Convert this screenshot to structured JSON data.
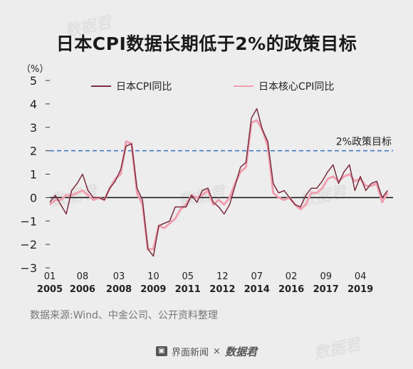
{
  "title": "日本CPI数据长期低于2%的政策目标",
  "source": "数据来源:Wind、中金公司、公开资料整理",
  "footer": {
    "brand1": "界面新闻",
    "times": "×",
    "brand2": "数据君"
  },
  "colors": {
    "cpi": "#7b2d3e",
    "core": "#f0a0b0",
    "target": "#3b6fc2",
    "zero": "#111111"
  },
  "chart_data": {
    "type": "line",
    "ylabel": "（%）",
    "ylim": [
      -3,
      5
    ],
    "yticks": [
      "5",
      "4",
      "3",
      "2",
      "1",
      "0",
      "−1",
      "−2",
      "−3"
    ],
    "xlim": [
      2005.0,
      2020.75
    ],
    "xticks": [
      {
        "x": 2005.0,
        "month": "01",
        "year": "2005"
      },
      {
        "x": 2006.5,
        "month": "08",
        "year": "2006"
      },
      {
        "x": 2008.17,
        "month": "03",
        "year": "2008"
      },
      {
        "x": 2009.75,
        "month": "10",
        "year": "2009"
      },
      {
        "x": 2011.33,
        "month": "05",
        "year": "2011"
      },
      {
        "x": 2012.92,
        "month": "12",
        "year": "2012"
      },
      {
        "x": 2014.5,
        "month": "07",
        "year": "2014"
      },
      {
        "x": 2016.08,
        "month": "02",
        "year": "2016"
      },
      {
        "x": 2017.67,
        "month": "09",
        "year": "2017"
      },
      {
        "x": 2019.25,
        "month": "04",
        "year": "2019"
      }
    ],
    "reference_line": {
      "value": 2,
      "label": "2%政策目标"
    },
    "series": [
      {
        "name": "日本CPI同比",
        "x": [
          2005.0,
          2005.25,
          2005.5,
          2005.75,
          2006.0,
          2006.25,
          2006.5,
          2006.75,
          2007.0,
          2007.25,
          2007.5,
          2007.75,
          2008.0,
          2008.25,
          2008.5,
          2008.75,
          2009.0,
          2009.25,
          2009.5,
          2009.75,
          2010.0,
          2010.25,
          2010.5,
          2010.75,
          2011.0,
          2011.25,
          2011.5,
          2011.75,
          2012.0,
          2012.25,
          2012.5,
          2012.75,
          2013.0,
          2013.25,
          2013.5,
          2013.75,
          2014.0,
          2014.25,
          2014.5,
          2014.75,
          2015.0,
          2015.25,
          2015.5,
          2015.75,
          2016.0,
          2016.25,
          2016.5,
          2016.75,
          2017.0,
          2017.25,
          2017.5,
          2017.75,
          2018.0,
          2018.25,
          2018.5,
          2018.75,
          2019.0,
          2019.25,
          2019.5,
          2019.75,
          2020.0,
          2020.25,
          2020.5
        ],
        "values": [
          -0.2,
          0.1,
          -0.3,
          -0.7,
          0.3,
          0.6,
          1.0,
          0.3,
          0.0,
          0.0,
          -0.1,
          0.4,
          0.7,
          1.2,
          2.2,
          2.3,
          0.4,
          -0.1,
          -2.2,
          -2.5,
          -1.2,
          -1.1,
          -1.0,
          -0.4,
          -0.4,
          -0.4,
          0.1,
          -0.2,
          0.3,
          0.4,
          -0.2,
          -0.4,
          -0.7,
          -0.3,
          0.5,
          1.3,
          1.5,
          3.4,
          3.8,
          2.9,
          2.4,
          0.6,
          0.2,
          0.3,
          0.0,
          -0.3,
          -0.4,
          0.1,
          0.4,
          0.4,
          0.7,
          1.1,
          1.4,
          0.6,
          1.1,
          1.4,
          0.3,
          0.9,
          0.3,
          0.6,
          0.7,
          0.0,
          0.3
        ]
      },
      {
        "name": "日本核心CPI同比",
        "x": [
          2005.0,
          2005.25,
          2005.5,
          2005.75,
          2006.0,
          2006.25,
          2006.5,
          2006.75,
          2007.0,
          2007.25,
          2007.5,
          2007.75,
          2008.0,
          2008.25,
          2008.5,
          2008.75,
          2009.0,
          2009.25,
          2009.5,
          2009.75,
          2010.0,
          2010.25,
          2010.5,
          2010.75,
          2011.0,
          2011.25,
          2011.5,
          2011.75,
          2012.0,
          2012.25,
          2012.5,
          2012.75,
          2013.0,
          2013.25,
          2013.5,
          2013.75,
          2014.0,
          2014.25,
          2014.5,
          2014.75,
          2015.0,
          2015.25,
          2015.5,
          2015.75,
          2016.0,
          2016.25,
          2016.5,
          2016.75,
          2017.0,
          2017.25,
          2017.5,
          2017.75,
          2018.0,
          2018.25,
          2018.5,
          2018.75,
          2019.0,
          2019.25,
          2019.5,
          2019.75,
          2020.0,
          2020.25,
          2020.5
        ],
        "values": [
          -0.3,
          -0.1,
          -0.1,
          0.1,
          0.1,
          0.2,
          0.3,
          0.1,
          -0.1,
          0.0,
          -0.1,
          0.4,
          0.8,
          1.0,
          2.4,
          2.3,
          0.2,
          -0.3,
          -2.2,
          -2.2,
          -1.2,
          -1.3,
          -1.1,
          -0.9,
          -0.5,
          -0.3,
          0.1,
          0.0,
          0.1,
          0.3,
          -0.3,
          -0.1,
          -0.3,
          0.0,
          0.6,
          1.1,
          1.3,
          3.2,
          3.3,
          2.9,
          2.2,
          0.2,
          0.0,
          -0.1,
          0.0,
          -0.3,
          -0.5,
          -0.3,
          0.2,
          0.2,
          0.4,
          0.8,
          0.9,
          0.7,
          0.9,
          1.0,
          0.7,
          0.8,
          0.5,
          0.5,
          0.6,
          -0.2,
          0.2
        ]
      }
    ]
  }
}
